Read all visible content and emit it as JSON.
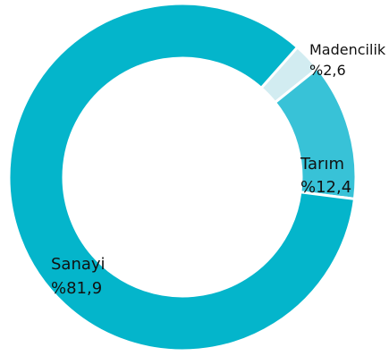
{
  "chart_data": {
    "type": "pie",
    "donut": true,
    "categories": [
      "Sanayi",
      "Tarım",
      "Madencilik"
    ],
    "values": [
      81.9,
      12.4,
      2.6
    ],
    "value_labels": [
      "%81,9",
      "%12,4",
      "%2,6"
    ],
    "colors": [
      "#04b5cb",
      "#38c2d7",
      "#d2ecf1"
    ],
    "title": "",
    "legend": "none"
  }
}
